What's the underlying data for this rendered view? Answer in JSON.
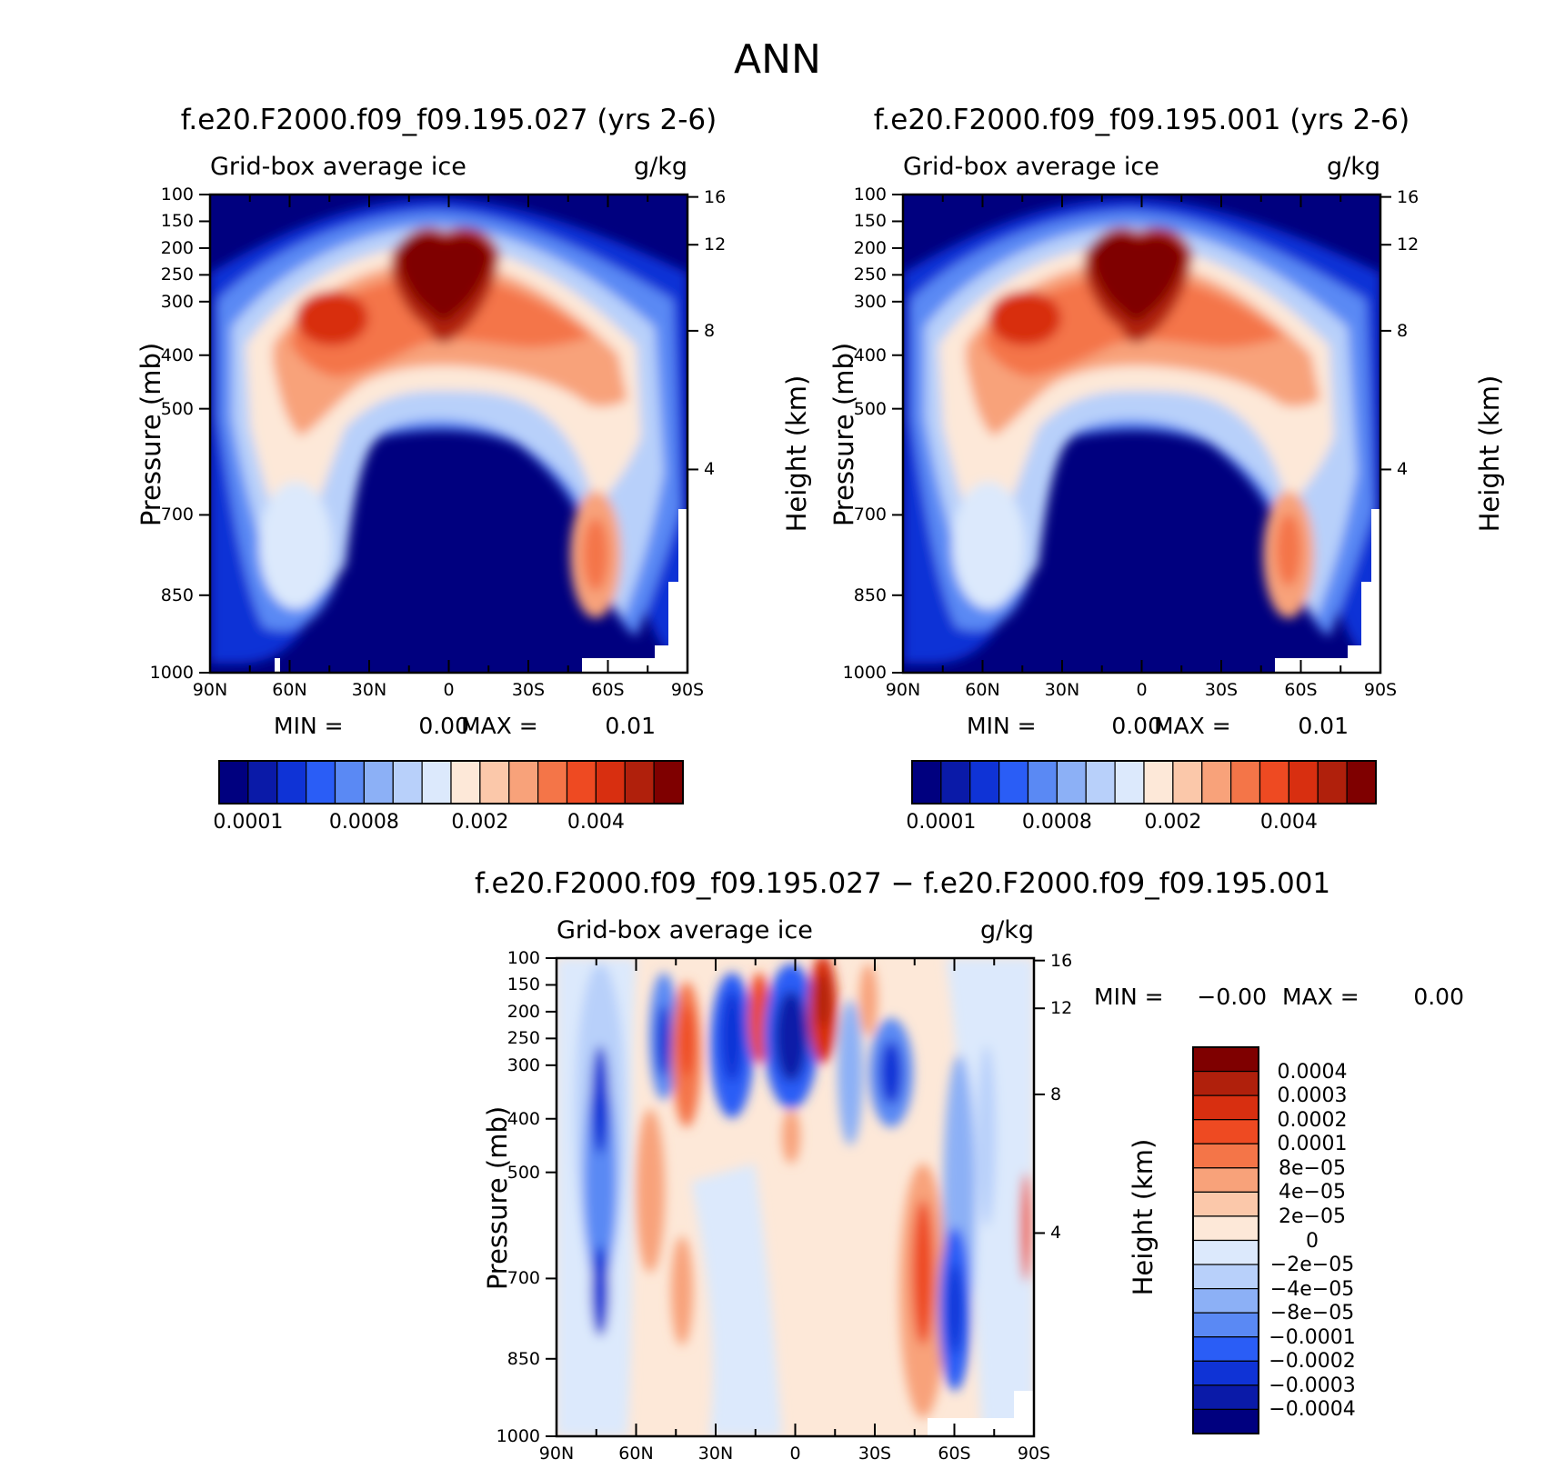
{
  "page_title": "ANN",
  "chart_data": [
    {
      "type": "heatmap",
      "title": "f.e20.F2000.f09_f09.195.027 (yrs 2-6)",
      "left_subtitle": "Grid-box average ice",
      "right_subtitle": "g/kg",
      "ylabel": "Pressure (mb)",
      "ylabel_right": "Height (km)",
      "x_ticks": [
        "90N",
        "60N",
        "30N",
        "0",
        "30S",
        "60S",
        "90S"
      ],
      "y_ticks": [
        "100",
        "150",
        "200",
        "250",
        "300",
        "400",
        "500",
        "700",
        "850",
        "1000"
      ],
      "y_ticks_right": [
        "16",
        "12",
        "8",
        "4"
      ],
      "min_label": "MIN =",
      "min_value": "0.00",
      "max_label": "MAX =",
      "max_value": "0.01",
      "colorbar_labels": [
        "0.0001",
        "0.0008",
        "0.002",
        "0.004"
      ],
      "colorbar_colors": [
        "#00007f",
        "#0a1aa8",
        "#0f33d6",
        "#2a5df6",
        "#5a89f4",
        "#8cb0f6",
        "#b8d0fa",
        "#dce9fc",
        "#fde8d8",
        "#fbc8aa",
        "#f8a27a",
        "#f47548",
        "#ee4a22",
        "#d82f10",
        "#b0200c",
        "#7f0000"
      ]
    },
    {
      "type": "heatmap",
      "title": "f.e20.F2000.f09_f09.195.001 (yrs 2-6)",
      "left_subtitle": "Grid-box average ice",
      "right_subtitle": "g/kg",
      "ylabel": "Pressure (mb)",
      "ylabel_right": "Height (km)",
      "x_ticks": [
        "90N",
        "60N",
        "30N",
        "0",
        "30S",
        "60S",
        "90S"
      ],
      "y_ticks": [
        "100",
        "150",
        "200",
        "250",
        "300",
        "400",
        "500",
        "700",
        "850",
        "1000"
      ],
      "y_ticks_right": [
        "16",
        "12",
        "8",
        "4"
      ],
      "min_label": "MIN =",
      "min_value": "0.00",
      "max_label": "MAX =",
      "max_value": "0.01",
      "colorbar_labels": [
        "0.0001",
        "0.0008",
        "0.002",
        "0.004"
      ],
      "colorbar_colors": [
        "#00007f",
        "#0a1aa8",
        "#0f33d6",
        "#2a5df6",
        "#5a89f4",
        "#8cb0f6",
        "#b8d0fa",
        "#dce9fc",
        "#fde8d8",
        "#fbc8aa",
        "#f8a27a",
        "#f47548",
        "#ee4a22",
        "#d82f10",
        "#b0200c",
        "#7f0000"
      ]
    },
    {
      "type": "heatmap",
      "title": "f.e20.F2000.f09_f09.195.027 − f.e20.F2000.f09_f09.195.001",
      "left_subtitle": "Grid-box average ice",
      "right_subtitle": "g/kg",
      "ylabel": "Pressure (mb)",
      "ylabel_right": "Height (km)",
      "x_ticks": [
        "90N",
        "60N",
        "30N",
        "0",
        "30S",
        "60S",
        "90S"
      ],
      "y_ticks": [
        "100",
        "150",
        "200",
        "250",
        "300",
        "400",
        "500",
        "700",
        "850",
        "1000"
      ],
      "y_ticks_right": [
        "16",
        "12",
        "8",
        "4"
      ],
      "min_label": "MIN =",
      "min_value": "−0.00",
      "max_label": "MAX =",
      "max_value": "0.00",
      "colorbar_labels": [
        "0.0004",
        "0.0003",
        "0.0002",
        "0.0001",
        "8e−05",
        "4e−05",
        "2e−05",
        "0",
        "−2e−05",
        "−4e−05",
        "−8e−05",
        "−0.0001",
        "−0.0002",
        "−0.0003",
        "−0.0004"
      ],
      "colorbar_colors": [
        "#7f0000",
        "#b0200c",
        "#d82f10",
        "#ee4a22",
        "#f47548",
        "#f8a27a",
        "#fbc8aa",
        "#fde8d8",
        "#dce9fc",
        "#b8d0fa",
        "#8cb0f6",
        "#5a89f4",
        "#2a5df6",
        "#0f33d6",
        "#0a1aa8",
        "#00007f"
      ]
    }
  ]
}
